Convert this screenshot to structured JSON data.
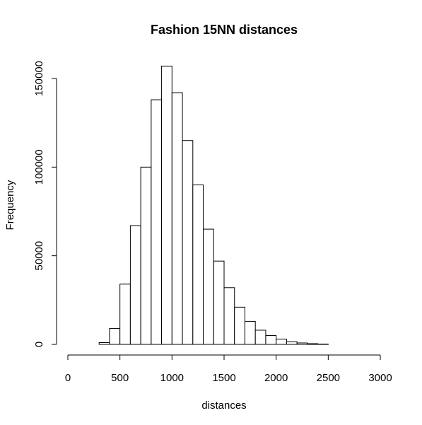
{
  "chart_data": {
    "type": "bar",
    "title": "Fashion 15NN distances",
    "xlabel": "distances",
    "ylabel": "Frequency",
    "xlim": [
      0,
      3000
    ],
    "ylim": [
      0,
      150000
    ],
    "x_ticks": [
      0,
      500,
      1000,
      1500,
      2000,
      2500,
      3000
    ],
    "y_ticks": [
      0,
      50000,
      100000,
      150000
    ],
    "bin_width": 100,
    "bins": [
      {
        "x0": 0,
        "x1": 100,
        "value": 0
      },
      {
        "x0": 100,
        "x1": 200,
        "value": 0
      },
      {
        "x0": 200,
        "x1": 300,
        "value": 0
      },
      {
        "x0": 300,
        "x1": 400,
        "value": 1000
      },
      {
        "x0": 400,
        "x1": 500,
        "value": 9000
      },
      {
        "x0": 500,
        "x1": 600,
        "value": 34000
      },
      {
        "x0": 600,
        "x1": 700,
        "value": 67000
      },
      {
        "x0": 700,
        "x1": 800,
        "value": 100000
      },
      {
        "x0": 800,
        "x1": 900,
        "value": 138000
      },
      {
        "x0": 900,
        "x1": 1000,
        "value": 157000
      },
      {
        "x0": 1000,
        "x1": 1100,
        "value": 142000
      },
      {
        "x0": 1100,
        "x1": 1200,
        "value": 115000
      },
      {
        "x0": 1200,
        "x1": 1300,
        "value": 90000
      },
      {
        "x0": 1300,
        "x1": 1400,
        "value": 65000
      },
      {
        "x0": 1400,
        "x1": 1500,
        "value": 47000
      },
      {
        "x0": 1500,
        "x1": 1600,
        "value": 32000
      },
      {
        "x0": 1600,
        "x1": 1700,
        "value": 21000
      },
      {
        "x0": 1700,
        "x1": 1800,
        "value": 13000
      },
      {
        "x0": 1800,
        "x1": 1900,
        "value": 8000
      },
      {
        "x0": 1900,
        "x1": 2000,
        "value": 5000
      },
      {
        "x0": 2000,
        "x1": 2100,
        "value": 3000
      },
      {
        "x0": 2100,
        "x1": 2200,
        "value": 1500
      },
      {
        "x0": 2200,
        "x1": 2300,
        "value": 800
      },
      {
        "x0": 2300,
        "x1": 2400,
        "value": 400
      },
      {
        "x0": 2400,
        "x1": 2500,
        "value": 200
      },
      {
        "x0": 2500,
        "x1": 2600,
        "value": 0
      },
      {
        "x0": 2600,
        "x1": 2700,
        "value": 0
      },
      {
        "x0": 2700,
        "x1": 2800,
        "value": 0
      },
      {
        "x0": 2800,
        "x1": 2900,
        "value": 0
      },
      {
        "x0": 2900,
        "x1": 3000,
        "value": 0
      }
    ],
    "grid": false,
    "legend": "none"
  }
}
